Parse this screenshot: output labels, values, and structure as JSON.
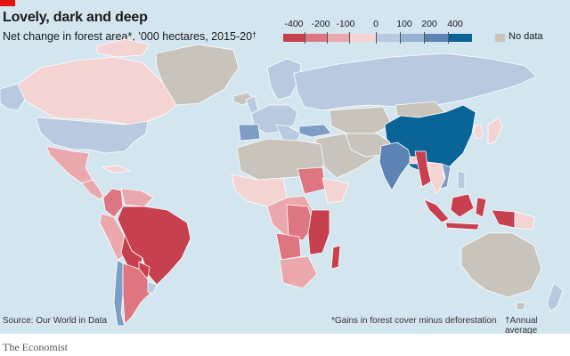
{
  "title": "Lovely, dark and deep",
  "subtitle": "Net change in forest area*, ’000 hectares, 2015-20",
  "subtitle_mark": "†",
  "legend": {
    "ticks": [
      "-400",
      "-200",
      "-100",
      "0",
      "100",
      "200",
      "400"
    ],
    "no_data": "No data",
    "colors": [
      "#c6404f",
      "#dd7680",
      "#eaa8ac",
      "#f4d3d3",
      "#b9c9df",
      "#7d9cc6",
      "#2e6aa6",
      "#0b6498"
    ],
    "no_data_color": "#c8c4bc"
  },
  "source": "Source: Our World in Data",
  "footnote_gains": "*Gains in forest cover minus deforestation",
  "footnote_annual": "†Annual average",
  "footer_brand": "The Economist",
  "colors": {
    "ocean": "#d3e5ef",
    "brand_red": "#e3120b",
    "no_data": "#c8c4bc",
    "loss_high": "#c6404f",
    "loss_mid": "#dd7680",
    "loss_low": "#eaa8ac",
    "loss_min": "#f4d3d3",
    "gain_min": "#b9c9df",
    "gain_mid": "#7d9cc6",
    "gain_high": "#0b6498"
  }
}
